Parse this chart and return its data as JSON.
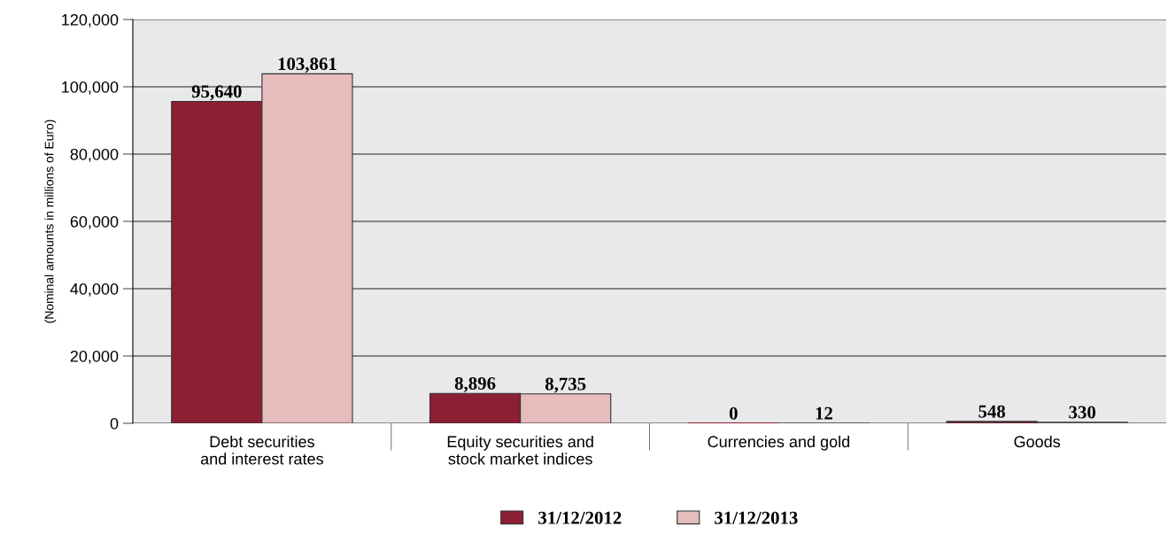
{
  "chart_data": {
    "type": "bar",
    "ylabel": "(Nominal amounts in millions of Euro)",
    "categories": [
      "Debt securities\nand interest rates",
      "Equity securities and\nstock market indices",
      "Currencies and gold",
      "Goods"
    ],
    "series": [
      {
        "name": "31/12/2012",
        "color": "#8c1f33",
        "values": [
          95640,
          8896,
          0,
          548
        ],
        "value_labels": [
          "95,640",
          "8,896",
          "0",
          "548"
        ]
      },
      {
        "name": "31/12/2013",
        "color": "#e6bcbc",
        "values": [
          103861,
          8735,
          12,
          330
        ],
        "value_labels": [
          "103,861",
          "8,735",
          "12",
          "330"
        ]
      }
    ],
    "ylim": [
      0,
      120000
    ],
    "yticks": [
      {
        "value": 0,
        "label": "0"
      },
      {
        "value": 20000,
        "label": "20,000"
      },
      {
        "value": 40000,
        "label": "40,000"
      },
      {
        "value": 60000,
        "label": "60,000"
      },
      {
        "value": 80000,
        "label": "80,000"
      },
      {
        "value": 100000,
        "label": "100,000"
      },
      {
        "value": 120000,
        "label": "120,000"
      }
    ],
    "grid": "y",
    "legend": "bottom"
  }
}
